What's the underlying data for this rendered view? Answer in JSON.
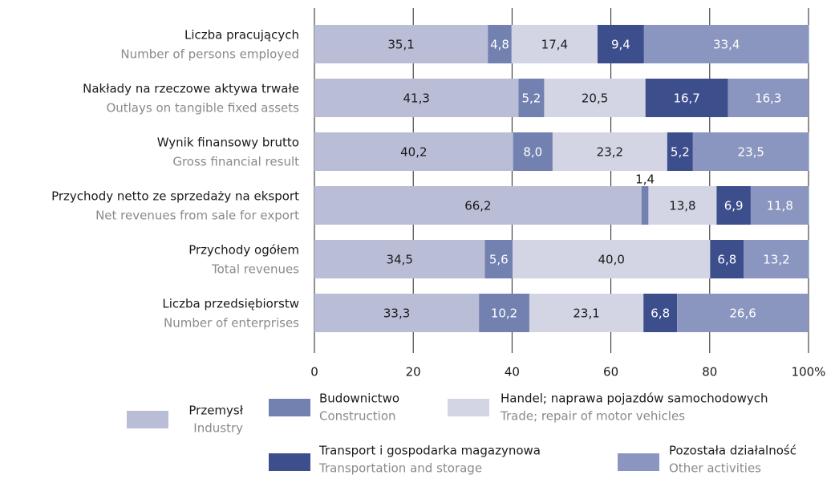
{
  "chart_data": {
    "type": "stacked-barh",
    "categories": [
      "Liczba pracujących",
      "Nakłady na rzeczowe aktywa trwałe",
      "Wynik finansowy brutto",
      "Przychody netto ze sprzedaży na eksport",
      "Przychody ogółem",
      "Liczba przedsiębiorstw"
    ],
    "categories_en": [
      "Number of persons employed",
      "Outlays on tangible fixed assets",
      "Gross financial result",
      "Net revenues from sale for export",
      "Total revenues",
      "Number of enterprises"
    ],
    "series": [
      {
        "name": "Przemysł",
        "name_en": "Industry",
        "color": "#b9bdd6",
        "values": [
          35.1,
          41.3,
          40.2,
          66.2,
          34.5,
          33.3
        ],
        "value_labels": [
          "35,1",
          "41,3",
          "40,2",
          "66,2",
          "34,5",
          "33,3"
        ]
      },
      {
        "name": "Budownictwo",
        "name_en": "Construction",
        "color": "#7281b0",
        "values": [
          4.8,
          5.2,
          8.0,
          1.4,
          5.6,
          10.2
        ],
        "value_labels": [
          "4,8",
          "5,2",
          "8,0",
          "1,4",
          "5,6",
          "10,2"
        ]
      },
      {
        "name": "Handel; naprawa pojazdów samochodowych",
        "name_en": "Trade; repair of motor vehicles",
        "color": "#d3d5e5",
        "values": [
          17.4,
          20.5,
          23.2,
          13.8,
          40.0,
          23.1
        ],
        "value_labels": [
          "17,4",
          "20,5",
          "23,2",
          "13,8",
          "40,0",
          "23,1"
        ]
      },
      {
        "name": "Transport i gospodarka magazynowa",
        "name_en": "Transportation and storage",
        "color": "#3d4e8c",
        "values": [
          9.4,
          16.7,
          5.2,
          6.9,
          6.8,
          6.8
        ],
        "value_labels": [
          "9,4",
          "16,7",
          "5,2",
          "6,9",
          "6,8",
          "6,8"
        ]
      },
      {
        "name": "Pozostała działalność",
        "name_en": "Other activities",
        "color": "#8b96c0",
        "values": [
          33.4,
          16.3,
          23.5,
          11.8,
          13.2,
          26.6
        ],
        "value_labels": [
          "33,4",
          "16,3",
          "23,5",
          "11,8",
          "13,2",
          "26,6"
        ]
      }
    ],
    "xlim": [
      0,
      100
    ],
    "xticks": [
      0,
      20,
      40,
      60,
      80,
      {
        "value": 100,
        "label": "100%"
      }
    ],
    "grid": true
  }
}
